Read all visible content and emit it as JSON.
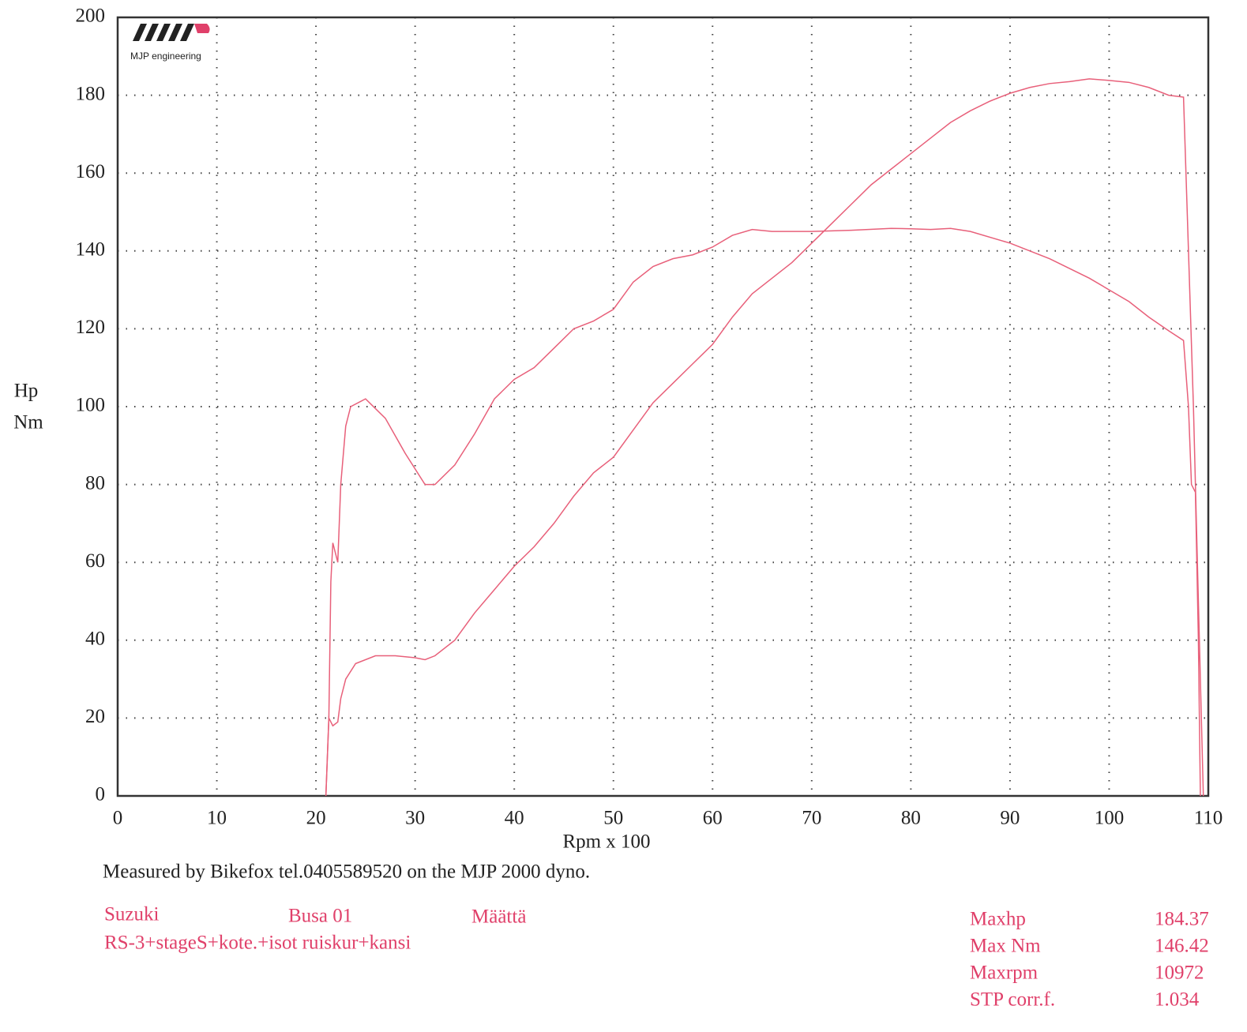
{
  "logo_text": "MJP engineering",
  "chart_data": {
    "type": "line",
    "y_label": [
      "Hp",
      "Nm"
    ],
    "x_label": "Rpm x 100",
    "xlim": [
      0,
      110
    ],
    "xticks": [
      0,
      10,
      20,
      30,
      40,
      50,
      60,
      70,
      80,
      90,
      100,
      110
    ],
    "ylim": [
      0,
      200
    ],
    "yticks": [
      0,
      20,
      40,
      60,
      80,
      100,
      120,
      140,
      160,
      180,
      200
    ],
    "grid": true,
    "series": [
      {
        "color": "#e8607a",
        "x": [
          21,
          21.3,
          21.5,
          21.7,
          22.2,
          22.5,
          23,
          23.5,
          25,
          27,
          29,
          31,
          32,
          34,
          36,
          38,
          40,
          42,
          44,
          46,
          48,
          50,
          52,
          54,
          56,
          58,
          60,
          62,
          64,
          66,
          70,
          74,
          78,
          80,
          82,
          84,
          86,
          90,
          94,
          98,
          100,
          102,
          104,
          106,
          107.5,
          108,
          108.3,
          108.7,
          109,
          109.2
        ],
        "values": [
          0,
          20,
          55,
          65,
          60,
          80,
          95,
          100,
          102,
          97,
          88,
          80,
          80,
          85,
          93,
          102,
          107,
          110,
          115,
          120,
          122,
          125,
          132,
          136,
          138,
          139,
          141,
          144,
          145.5,
          145,
          145,
          145.3,
          145.8,
          145.7,
          145.5,
          145.8,
          145,
          142,
          138,
          133,
          130,
          127,
          123,
          119.5,
          117,
          100,
          80,
          78,
          40,
          0
        ]
      },
      {
        "color": "#e8607a",
        "x": [
          21,
          21.3,
          21.7,
          22.2,
          22.5,
          23,
          24,
          26,
          28,
          30,
          31,
          32,
          34,
          36,
          38,
          40,
          42,
          44,
          46,
          48,
          50,
          52,
          54,
          56,
          58,
          60,
          62,
          64,
          66,
          68,
          70,
          72,
          74,
          76,
          78,
          80,
          82,
          84,
          86,
          88,
          90,
          92,
          94,
          96,
          98,
          100,
          102,
          104,
          106,
          107.5,
          108,
          108.5,
          109,
          109.5
        ],
        "values": [
          0,
          20,
          18,
          19,
          25,
          30,
          34,
          36,
          36,
          35.5,
          35,
          36,
          40,
          47,
          53,
          59,
          64,
          70,
          77,
          83,
          87,
          94,
          101,
          106,
          111,
          116,
          123,
          129,
          133,
          137,
          142,
          147,
          152,
          157,
          161,
          165,
          169,
          173,
          176,
          178.5,
          180.5,
          182,
          183,
          183.5,
          184.2,
          183.8,
          183.3,
          182,
          180,
          179.5,
          140,
          100,
          50,
          0
        ]
      }
    ]
  },
  "footer": {
    "note": "Measured by Bikefox tel.0405589520 on the MJP 2000 dyno.",
    "make": "Suzuki",
    "model": "Busa 01",
    "owner": "Määttä",
    "setup": "RS-3+stageS+kote.+isot ruiskur+kansi",
    "stats": [
      [
        "Maxhp",
        184.37
      ],
      [
        "Max Nm",
        146.42
      ],
      [
        "Maxrpm",
        10972
      ],
      [
        "STP corr.f.",
        1.034
      ]
    ]
  }
}
